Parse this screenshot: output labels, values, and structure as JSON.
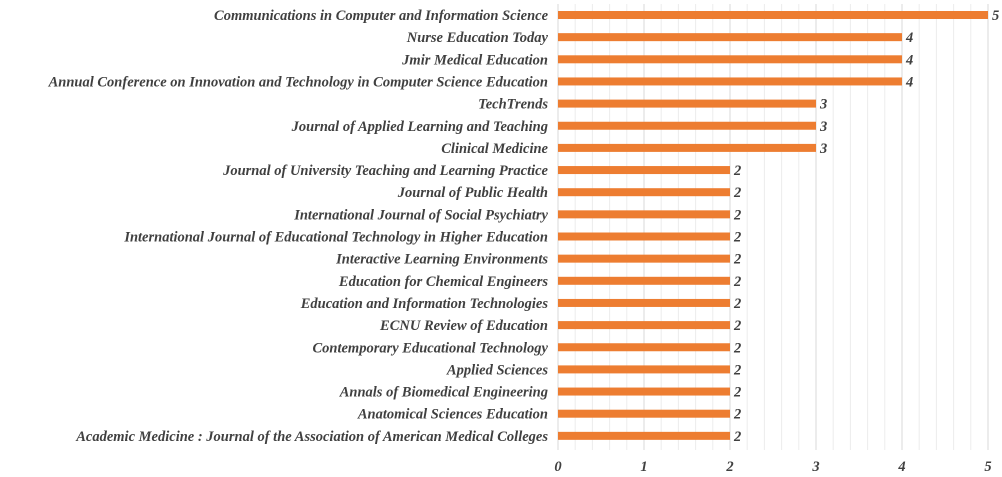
{
  "chart_data": {
    "type": "bar",
    "orientation": "horizontal",
    "categories": [
      "Communications in Computer and Information Science",
      "Nurse Education Today",
      "Jmir Medical Education",
      "Annual Conference on Innovation and Technology in Computer Science Education",
      "TechTrends",
      "Journal of Applied Learning and Teaching",
      "Clinical Medicine",
      "Journal of University Teaching and Learning Practice",
      "Journal of Public Health",
      "International Journal of Social Psychiatry",
      "International Journal of Educational Technology in Higher Education",
      "Interactive Learning Environments",
      "Education for Chemical Engineers",
      "Education and Information Technologies",
      "ECNU Review of Education",
      "Contemporary Educational Technology",
      "Applied Sciences",
      "Annals of Biomedical Engineering",
      "Anatomical Sciences Education",
      "Academic Medicine : Journal of the Association of American Medical Colleges"
    ],
    "values": [
      5,
      4,
      4,
      4,
      3,
      3,
      3,
      2,
      2,
      2,
      2,
      2,
      2,
      2,
      2,
      2,
      2,
      2,
      2,
      2
    ],
    "xlim": [
      0,
      5
    ],
    "xticks": [
      0,
      1,
      2,
      3,
      4,
      5
    ],
    "bar_color": "#ed7d31",
    "grid": true,
    "legend": "none",
    "title": "",
    "xlabel": "",
    "ylabel": ""
  }
}
